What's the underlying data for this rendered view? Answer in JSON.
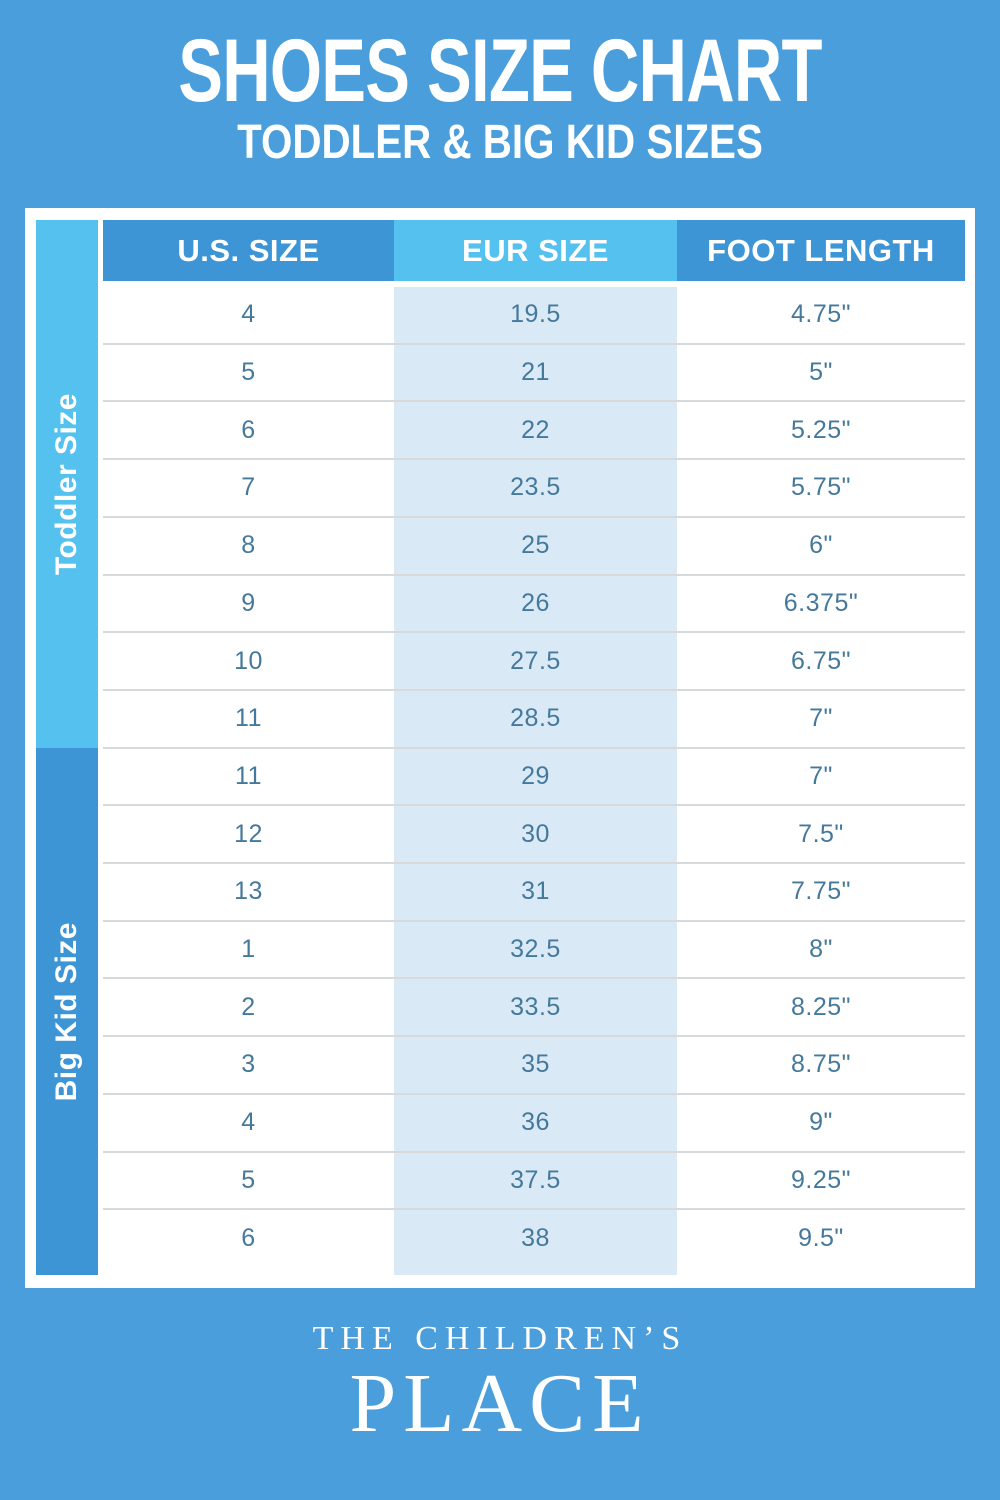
{
  "title": "SHOES SIZE CHART",
  "subtitle": "TODDLER & BIG KID SIZES",
  "chart_data": {
    "type": "table",
    "title": "SHOES SIZE CHART",
    "subtitle": "TODDLER & BIG KID SIZES",
    "columns": [
      "U.S. SIZE",
      "EUR SIZE",
      "FOOT LENGTH"
    ],
    "row_groups": [
      {
        "label": "Toddler Size",
        "rows": [
          [
            "4",
            "19.5",
            "4.75\""
          ],
          [
            "5",
            "21",
            "5\""
          ],
          [
            "6",
            "22",
            "5.25\""
          ],
          [
            "7",
            "23.5",
            "5.75\""
          ],
          [
            "8",
            "25",
            "6\""
          ],
          [
            "9",
            "26",
            "6.375\""
          ],
          [
            "10",
            "27.5",
            "6.75\""
          ],
          [
            "11",
            "28.5",
            "7\""
          ]
        ]
      },
      {
        "label": "Big Kid Size",
        "rows": [
          [
            "11",
            "29",
            "7\""
          ],
          [
            "12",
            "30",
            "7.5\""
          ],
          [
            "13",
            "31",
            "7.75\""
          ],
          [
            "1",
            "32.5",
            "8\""
          ],
          [
            "2",
            "33.5",
            "8.25\""
          ],
          [
            "3",
            "35",
            "8.75\""
          ],
          [
            "4",
            "36",
            "9\""
          ],
          [
            "5",
            "37.5",
            "9.25\""
          ],
          [
            "6",
            "38",
            "9.5\""
          ]
        ]
      }
    ]
  },
  "footer": {
    "brand_line1": "THE CHILDREN’S",
    "brand_line2": "PLACE"
  },
  "colors": {
    "background": "#4A9EDB",
    "header_blue": "#3E95D6",
    "accent_cyan": "#55C1EE",
    "eur_column_fill": "#D9E9F6",
    "cell_text": "#45799C",
    "row_divider": "#d9d9d9",
    "card": "#ffffff",
    "title_text": "#ffffff"
  }
}
